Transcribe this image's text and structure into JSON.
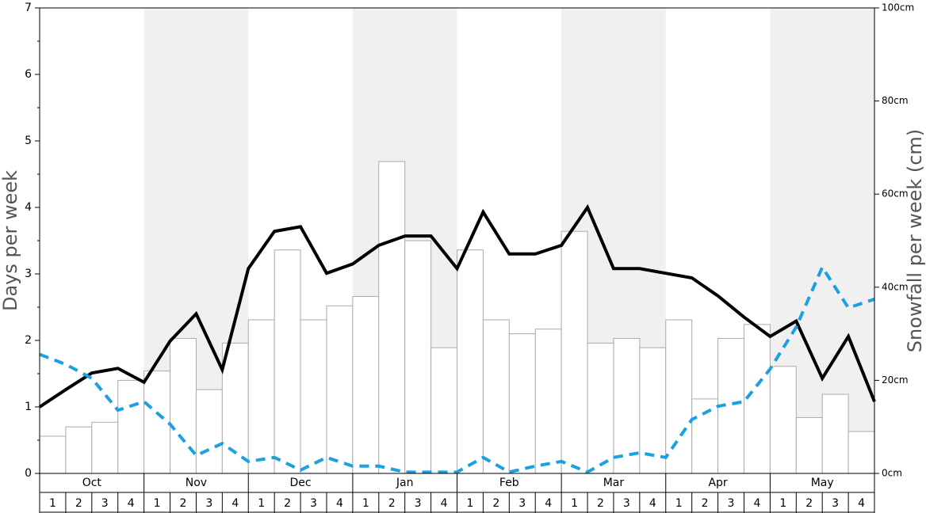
{
  "chart_data": {
    "type": "bar",
    "ylabel": "Days per week",
    "y2label": "Snowfall per week (cm)",
    "months": [
      "Oct",
      "Nov",
      "Dec",
      "Jan",
      "Feb",
      "Mar",
      "Apr",
      "May"
    ],
    "month_shaded": [
      false,
      true,
      false,
      true,
      false,
      true,
      false,
      true
    ],
    "week_labels": [
      1,
      2,
      3,
      4
    ],
    "ylim": [
      0,
      7
    ],
    "yticks": [
      0,
      1,
      2,
      3,
      4,
      5,
      6,
      7
    ],
    "y2lim": [
      0,
      100
    ],
    "y2ticks": [
      {
        "value": 0,
        "label": "0cm"
      },
      {
        "value": 20,
        "label": "20cm"
      },
      {
        "value": 40,
        "label": "40cm"
      },
      {
        "value": 60,
        "label": "60cm"
      },
      {
        "value": 80,
        "label": "80cm"
      },
      {
        "value": 100,
        "label": "100cm"
      }
    ],
    "bars": {
      "axis": "y2",
      "color": "#ffffff",
      "stroke": "#aaaaaa",
      "values": [
        8,
        10,
        11,
        20,
        22,
        29,
        18,
        28,
        33,
        48,
        33,
        36,
        38,
        67,
        50,
        27,
        48,
        33,
        30,
        31,
        52,
        28,
        29,
        27,
        33,
        16,
        29,
        32,
        23,
        12,
        17,
        9
      ]
    },
    "lines": [
      {
        "color": "#000000",
        "dashed": false,
        "values": [
          1.0,
          1.26,
          1.51,
          1.58,
          1.37,
          1.99,
          2.4,
          1.56,
          3.08,
          3.64,
          3.71,
          3.01,
          3.15,
          3.43,
          3.57,
          3.57,
          3.08,
          3.93,
          3.3,
          3.3,
          3.43,
          4.0,
          3.08,
          3.08,
          3.01,
          2.94,
          2.67,
          2.35,
          2.06,
          2.29,
          1.43,
          2.06,
          1.08
        ]
      },
      {
        "color": "#1ba1e2",
        "dashed": true,
        "values": [
          1.79,
          1.64,
          1.43,
          0.95,
          1.08,
          0.74,
          0.27,
          0.45,
          0.18,
          0.24,
          0.05,
          0.24,
          0.11,
          0.11,
          0.02,
          0.02,
          0.02,
          0.24,
          0.02,
          0.11,
          0.18,
          0.02,
          0.24,
          0.31,
          0.24,
          0.81,
          1.01,
          1.08,
          1.57,
          2.2,
          3.1,
          2.49,
          2.62
        ]
      }
    ]
  }
}
